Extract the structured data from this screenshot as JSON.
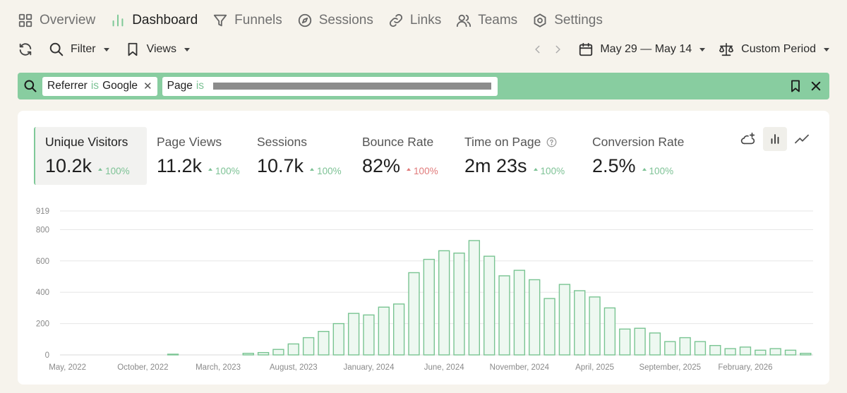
{
  "nav": {
    "items": [
      {
        "label": "Overview",
        "icon": "grid-icon",
        "active": false
      },
      {
        "label": "Dashboard",
        "icon": "bar-chart-icon",
        "active": true
      },
      {
        "label": "Funnels",
        "icon": "funnel-icon",
        "active": false
      },
      {
        "label": "Sessions",
        "icon": "compass-icon",
        "active": false
      },
      {
        "label": "Links",
        "icon": "link-icon",
        "active": false
      },
      {
        "label": "Teams",
        "icon": "users-icon",
        "active": false
      },
      {
        "label": "Settings",
        "icon": "gear-icon",
        "active": false
      }
    ]
  },
  "toolbar": {
    "refresh_icon": "refresh-icon",
    "filter_label": "Filter",
    "views_label": "Views",
    "date_range": "May 29 — May 14",
    "period_label": "Custom Period"
  },
  "filterbar": {
    "chips": [
      {
        "field": "Referrer",
        "operator": "is",
        "value": "Google"
      },
      {
        "field": "Page",
        "operator": "is",
        "value": ""
      }
    ]
  },
  "metrics": [
    {
      "label": "Unique Visitors",
      "value": "10.2k",
      "delta": "100%",
      "trend": "up",
      "good": true,
      "active": true,
      "help": false
    },
    {
      "label": "Page Views",
      "value": "11.2k",
      "delta": "100%",
      "trend": "up",
      "good": true,
      "active": false,
      "help": false
    },
    {
      "label": "Sessions",
      "value": "10.7k",
      "delta": "100%",
      "trend": "up",
      "good": true,
      "active": false,
      "help": false
    },
    {
      "label": "Bounce Rate",
      "value": "82%",
      "delta": "100%",
      "trend": "up",
      "good": false,
      "active": false,
      "help": false
    },
    {
      "label": "Time on Page",
      "value": "2m 23s",
      "delta": "100%",
      "trend": "up",
      "good": true,
      "active": false,
      "help": true
    },
    {
      "label": "Conversion Rate",
      "value": "2.5%",
      "delta": "100%",
      "trend": "up",
      "good": true,
      "active": false,
      "help": false
    }
  ],
  "colors": {
    "accent": "#7fc998",
    "bar_fill": "#eef8f1",
    "bar_stroke": "#79c492",
    "bad": "#e07a7a",
    "filterbar": "#88cda0"
  },
  "chart_data": {
    "type": "bar",
    "ylim": [
      0,
      919
    ],
    "y_ticks": [
      0,
      200,
      400,
      600,
      800,
      919
    ],
    "x_tick_labels": [
      "May, 2022",
      "October, 2022",
      "March, 2023",
      "August, 2023",
      "January, 2024",
      "June, 2024",
      "November, 2024",
      "April, 2025",
      "September, 2025",
      "February, 2026"
    ],
    "x_tick_index": [
      0,
      5,
      10,
      15,
      20,
      25,
      30,
      35,
      40,
      45
    ],
    "grid": true,
    "series": [
      {
        "values": [
          0,
          0,
          0,
          0,
          0,
          0,
          0,
          1,
          0,
          0,
          0,
          0,
          10,
          15,
          35,
          70,
          110,
          150,
          200,
          265,
          255,
          305,
          325,
          525,
          610,
          665,
          650,
          730,
          630,
          505,
          540,
          480,
          360,
          450,
          410,
          370,
          300,
          165,
          170,
          140,
          85,
          110,
          85,
          60,
          40,
          50,
          30,
          40,
          30,
          10
        ]
      }
    ]
  }
}
